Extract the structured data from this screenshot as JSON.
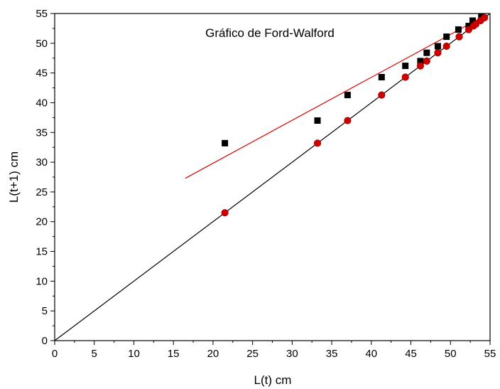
{
  "chart_data": {
    "type": "scatter",
    "title": "Gráfico de Ford-Walford",
    "xlabel": "L(t) cm",
    "ylabel": "L(t+1) cm",
    "xlim": [
      0,
      55
    ],
    "ylim": [
      0,
      55
    ],
    "xticks": [
      "0",
      "5",
      "10",
      "15",
      "20",
      "25",
      "30",
      "35",
      "40",
      "45",
      "50",
      "55"
    ],
    "yticks": [
      "0",
      "5",
      "10",
      "15",
      "20",
      "25",
      "30",
      "35",
      "40",
      "45",
      "50",
      "55"
    ],
    "grid": false,
    "series": [
      {
        "kind": "points",
        "marker": "square",
        "color": "#000000",
        "x": [
          21.5,
          33.2,
          37.0,
          41.3,
          44.3,
          46.2,
          47.0,
          48.4,
          49.5,
          51.0,
          52.3,
          52.8,
          53.9
        ],
        "y": [
          33.2,
          37.0,
          41.3,
          44.3,
          46.2,
          47.0,
          48.4,
          49.5,
          51.1,
          52.3,
          52.9,
          53.8,
          54.5
        ]
      },
      {
        "kind": "points",
        "marker": "circle",
        "color": "#cc0000",
        "x": [
          21.5,
          33.2,
          37.0,
          41.3,
          44.3,
          46.2,
          47.0,
          48.4,
          49.5,
          51.1,
          52.3,
          52.9,
          53.2,
          53.8,
          54.3
        ],
        "y": [
          21.5,
          33.2,
          37.0,
          41.3,
          44.3,
          46.2,
          47.0,
          48.4,
          49.5,
          51.1,
          52.3,
          52.9,
          53.2,
          53.8,
          54.3
        ]
      },
      {
        "kind": "line",
        "color": "#000000",
        "x": [
          0,
          55
        ],
        "y": [
          0,
          55
        ]
      },
      {
        "kind": "line",
        "color": "#dd0000",
        "x": [
          16.5,
          54.3
        ],
        "y": [
          27.3,
          54.6
        ]
      }
    ]
  }
}
